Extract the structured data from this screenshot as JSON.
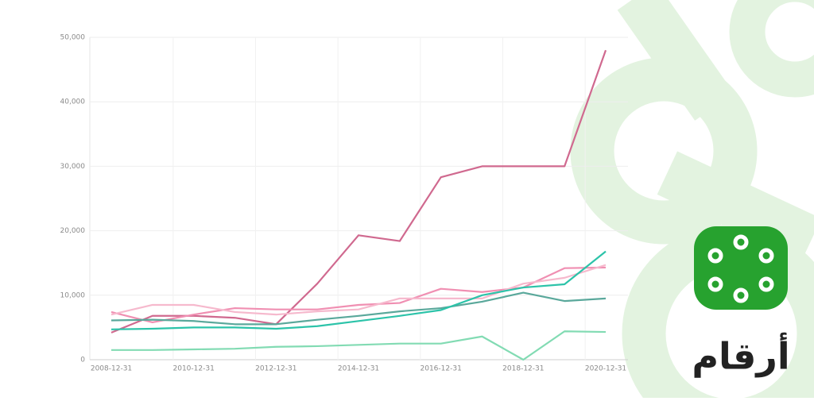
{
  "chart_data": {
    "type": "line",
    "categories": [
      "2008-12-31",
      null,
      "2010-12-31",
      null,
      "2012-12-31",
      null,
      "2014-12-31",
      null,
      "2016-12-31",
      null,
      "2018-12-31",
      null,
      "2020-12-31"
    ],
    "series": [
      {
        "color": "#d0698f",
        "values": [
          4200,
          6800,
          6800,
          6500,
          5500,
          11800,
          19300,
          18400,
          28300,
          30000,
          30000,
          30000,
          48000
        ]
      },
      {
        "color": "#f08fb2",
        "values": [
          7400,
          5800,
          7000,
          8000,
          7800,
          7800,
          8500,
          8800,
          11000,
          10500,
          11200,
          14200,
          14300
        ]
      },
      {
        "color": "#f6b9cd",
        "values": [
          7000,
          8500,
          8500,
          7400,
          7000,
          7500,
          7800,
          9500,
          9500,
          9500,
          11800,
          12700,
          14700
        ]
      },
      {
        "color": "#5aa89b",
        "values": [
          6100,
          6200,
          6000,
          5500,
          5500,
          6200,
          6800,
          7500,
          8000,
          9000,
          10400,
          9100,
          9500
        ]
      },
      {
        "color": "#2cc3a9",
        "values": [
          4700,
          4800,
          5000,
          5000,
          4800,
          5200,
          6000,
          6800,
          7700,
          10000,
          11200,
          11700,
          16800
        ]
      },
      {
        "color": "#82dbb3",
        "values": [
          1500,
          1500,
          1600,
          1700,
          2000,
          2100,
          2300,
          2500,
          2500,
          3600,
          0,
          4400,
          4300
        ]
      }
    ],
    "ylim": [
      0,
      50000
    ],
    "yticks": [
      0,
      {
        "value": 10000,
        "label": "10,000"
      },
      {
        "value": 20000,
        "label": "20,000"
      },
      {
        "value": 30000,
        "label": "30,000"
      },
      {
        "value": 40000,
        "label": "40,000"
      },
      {
        "value": 50000,
        "label": "50,000"
      }
    ],
    "grid": true
  },
  "logo_text": "أرقام"
}
